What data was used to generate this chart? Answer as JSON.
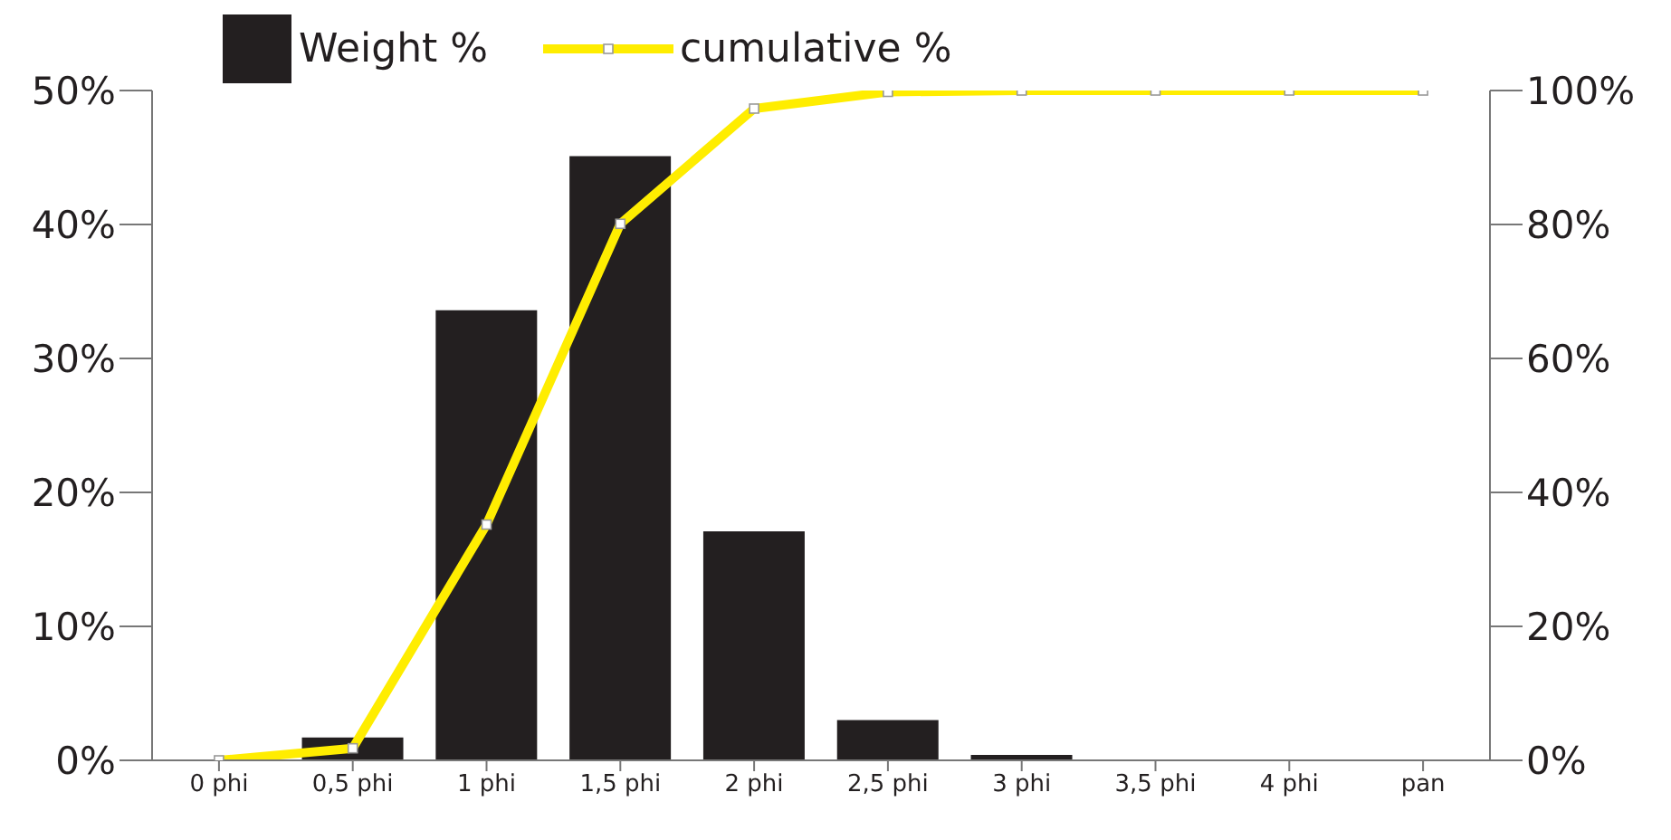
{
  "chart_data": {
    "type": "bar",
    "categories": [
      "0 phi",
      "0,5 phi",
      "1 phi",
      "1,5 phi",
      "2 phi",
      "2,5 phi",
      "3 phi",
      "3,5 phi",
      "4 phi",
      "pan"
    ],
    "series": [
      {
        "name": "Weight %",
        "color": "#231f20",
        "values": [
          null,
          1.7,
          33.6,
          45.1,
          17.1,
          3.0,
          0.4,
          0,
          0,
          0
        ]
      },
      {
        "name": "cumulative %",
        "type": "line",
        "axis": "y2",
        "color": "#ffed00",
        "marker": "square",
        "values": [
          0,
          1.8,
          35.2,
          80.1,
          97.3,
          99.8,
          100,
          100,
          100,
          100
        ]
      }
    ],
    "ylim": [
      0,
      50
    ],
    "yticks": [
      {
        "value": 0,
        "label": "0%"
      },
      {
        "value": 10,
        "label": "10%"
      },
      {
        "value": 20,
        "label": "20%"
      },
      {
        "value": 30,
        "label": "30%"
      },
      {
        "value": 40,
        "label": "40%"
      },
      {
        "value": 50,
        "label": "50%"
      }
    ],
    "y2lim": [
      0,
      100
    ],
    "y2ticks": [
      {
        "value": 0,
        "label": "0%"
      },
      {
        "value": 20,
        "label": "20%"
      },
      {
        "value": 40,
        "label": "40%"
      },
      {
        "value": 60,
        "label": "60%"
      },
      {
        "value": 80,
        "label": "80%"
      },
      {
        "value": 100,
        "label": "100%"
      }
    ],
    "grid": false,
    "legend": "top left"
  }
}
